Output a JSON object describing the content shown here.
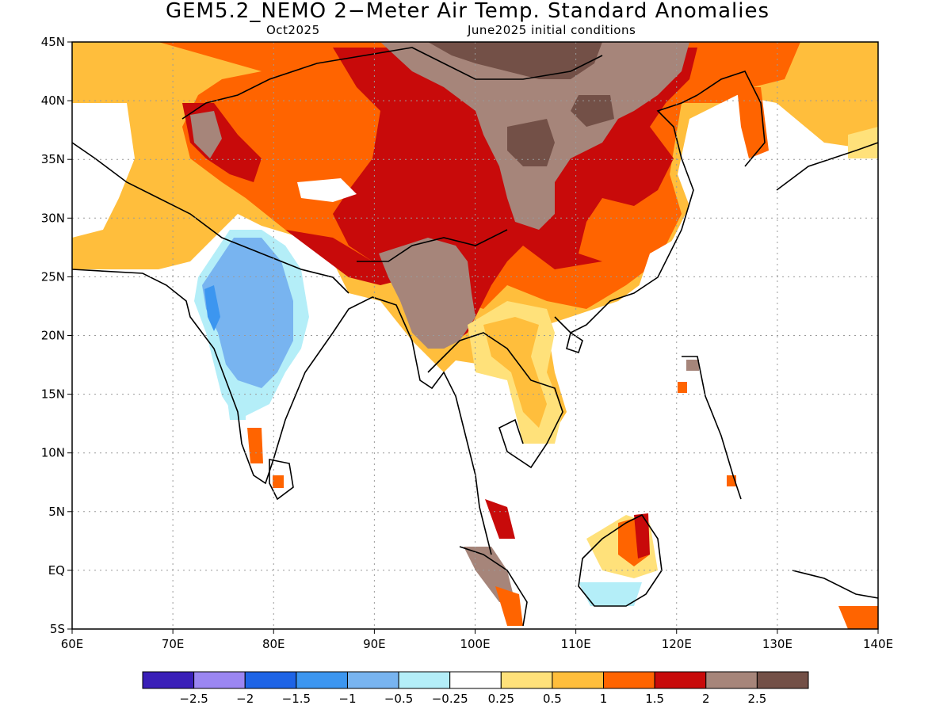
{
  "title": "GEM5.2_NEMO 2−Meter Air Temp. Standard Anomalies",
  "valid_month": "Oct2025",
  "init_conditions": "June2025 initial conditions",
  "map": {
    "lon_range": [
      60,
      140
    ],
    "lat_range": [
      -5,
      45
    ],
    "grid": "dotted",
    "lon_ticks": [
      "60E",
      "70E",
      "80E",
      "90E",
      "100E",
      "110E",
      "120E",
      "130E",
      "140E"
    ],
    "lat_ticks": [
      "45N",
      "40N",
      "35N",
      "30N",
      "25N",
      "20N",
      "15N",
      "10N",
      "5N",
      "EQ",
      "5S"
    ]
  },
  "colorbar": {
    "colors": [
      "#3a1fb8",
      "#9b86f2",
      "#1e64e6",
      "#3c96f0",
      "#78b4f0",
      "#b4eef8",
      "#ffffff",
      "#ffe17a",
      "#ffbe3c",
      "#ff6400",
      "#c80a0a",
      "#a6857a",
      "#735047"
    ],
    "labels": [
      "−2.5",
      "−2",
      "−1.5",
      "−1",
      "−0.5",
      "−0.25",
      "0.25",
      "0.5",
      "1",
      "1.5",
      "2",
      "2.5"
    ]
  },
  "anomaly_regions": [
    {
      "name": "central-asia-warm",
      "color": "#ffbe3c"
    },
    {
      "name": "china-strong-warm",
      "color": "#c80a0a"
    },
    {
      "name": "mongolia-extreme",
      "color": "#a6857a"
    },
    {
      "name": "india-cool",
      "color": "#78b4f0"
    },
    {
      "name": "borneo-cool",
      "color": "#b4eef8"
    }
  ]
}
